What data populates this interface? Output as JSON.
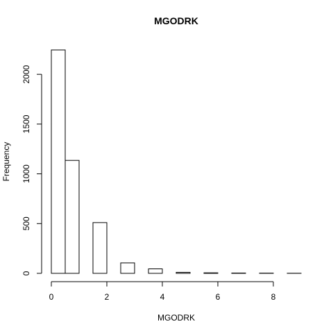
{
  "chart_data": {
    "type": "bar",
    "title": "MGODRK",
    "xlabel": "MGODRK",
    "ylabel": "Frequency",
    "bin_edges": [
      0,
      0.5,
      1,
      1.5,
      2,
      2.5,
      3,
      3.5,
      4,
      4.5,
      5,
      5.5,
      6,
      6.5,
      7,
      7.5,
      8,
      8.5,
      9
    ],
    "values": [
      2245,
      1135,
      0,
      510,
      0,
      105,
      0,
      45,
      0,
      10,
      0,
      5,
      0,
      3,
      0,
      2,
      0,
      1
    ],
    "xlim": [
      0,
      9
    ],
    "ylim": [
      0,
      2245
    ],
    "x_ticks": [
      0,
      2,
      4,
      6,
      8
    ],
    "y_ticks": [
      0,
      500,
      1000,
      1500,
      2000
    ],
    "grid": false
  }
}
